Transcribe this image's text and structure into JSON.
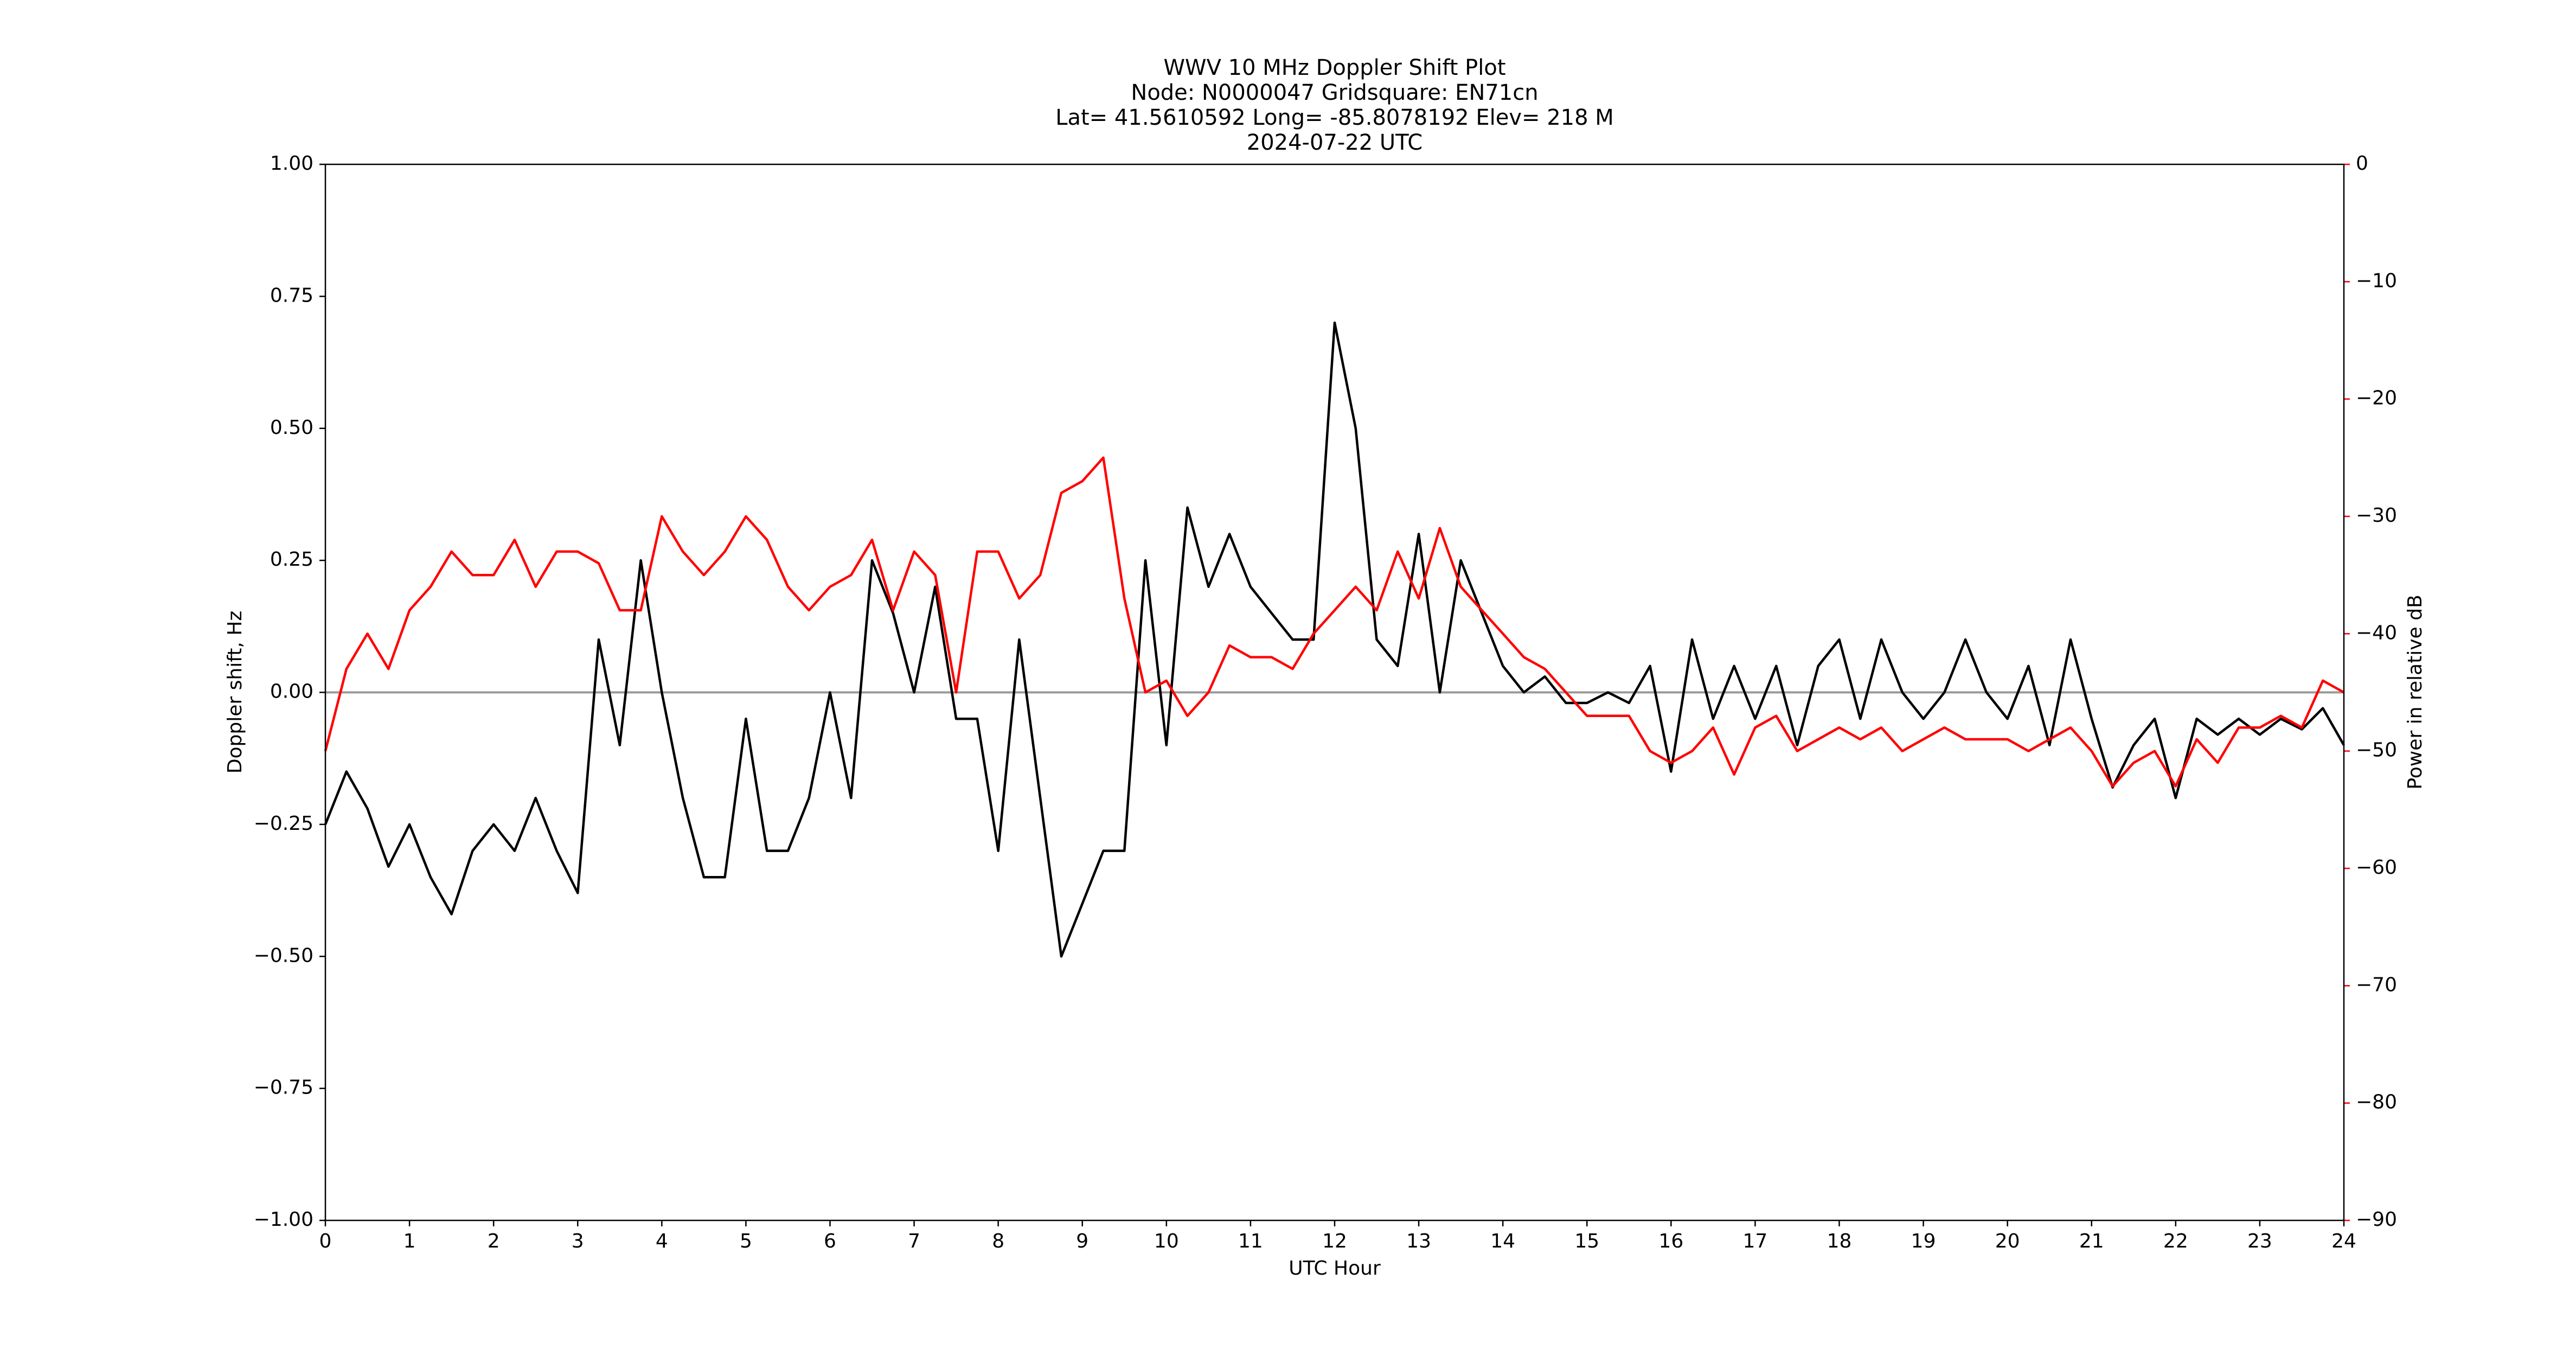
{
  "chart_data": {
    "type": "line",
    "title": [
      "WWV 10 MHz Doppler Shift Plot",
      "Node:  N0000047     Gridsquare:  EN71cn",
      "Lat= 41.5610592    Long= -85.8078192    Elev= 218 M",
      "2024-07-22  UTC"
    ],
    "xlabel": "UTC Hour",
    "ylabel": "Doppler shift, Hz",
    "y2label": "Power in relative dB",
    "xlim": [
      0,
      24
    ],
    "xticks": [
      0,
      1,
      2,
      3,
      4,
      5,
      6,
      7,
      8,
      9,
      10,
      11,
      12,
      13,
      14,
      15,
      16,
      17,
      18,
      19,
      20,
      21,
      22,
      23,
      24
    ],
    "ylim": [
      -1,
      1
    ],
    "yticks": [
      {
        "value": -1,
        "label": "−1.00"
      },
      {
        "value": -0.75,
        "label": "−0.75"
      },
      {
        "value": -0.5,
        "label": "−0.50"
      },
      {
        "value": -0.25,
        "label": "−0.25"
      },
      {
        "value": 0,
        "label": "0.00"
      },
      {
        "value": 0.25,
        "label": "0.25"
      },
      {
        "value": 0.5,
        "label": "0.50"
      },
      {
        "value": 0.75,
        "label": "0.75"
      },
      {
        "value": 1,
        "label": "1.00"
      }
    ],
    "y2lim": [
      -90,
      0
    ],
    "y2ticks": [
      {
        "value": -90,
        "label": "−90"
      },
      {
        "value": -80,
        "label": "−80"
      },
      {
        "value": -70,
        "label": "−70"
      },
      {
        "value": -60,
        "label": "−60"
      },
      {
        "value": -50,
        "label": "−50"
      },
      {
        "value": -40,
        "label": "−40"
      },
      {
        "value": -30,
        "label": "−30"
      },
      {
        "value": -20,
        "label": "−20"
      },
      {
        "value": -10,
        "label": "−10"
      },
      0
    ],
    "y2color": "#ff0000",
    "hline": 0,
    "hline_color": "#999999",
    "x": [
      0,
      0.25,
      0.5,
      0.75,
      1,
      1.25,
      1.5,
      1.75,
      2,
      2.25,
      2.5,
      2.75,
      3,
      3.25,
      3.5,
      3.75,
      4,
      4.25,
      4.5,
      4.75,
      5,
      5.25,
      5.5,
      5.75,
      6,
      6.25,
      6.5,
      6.75,
      7,
      7.25,
      7.5,
      7.75,
      8,
      8.25,
      8.5,
      8.75,
      9,
      9.25,
      9.5,
      9.75,
      10,
      10.25,
      10.5,
      10.75,
      11,
      11.25,
      11.5,
      11.75,
      12,
      12.25,
      12.5,
      12.75,
      13,
      13.25,
      13.5,
      13.75,
      14,
      14.25,
      14.5,
      14.75,
      15,
      15.25,
      15.5,
      15.75,
      16,
      16.25,
      16.5,
      16.75,
      17,
      17.25,
      17.5,
      17.75,
      18,
      18.25,
      18.5,
      18.75,
      19,
      19.25,
      19.5,
      19.75,
      20,
      20.25,
      20.5,
      20.75,
      21,
      21.25,
      21.5,
      21.75,
      22,
      22.25,
      22.5,
      22.75,
      23,
      23.25,
      23.5,
      23.75,
      24
    ],
    "series": [
      {
        "color": "#000000",
        "axis": "y",
        "values": [
          -0.25,
          -0.15,
          -0.22,
          -0.33,
          -0.25,
          -0.35,
          -0.42,
          -0.3,
          -0.25,
          -0.3,
          -0.2,
          -0.3,
          -0.38,
          0.1,
          -0.1,
          0.25,
          0,
          -0.2,
          -0.35,
          -0.35,
          -0.05,
          -0.3,
          -0.3,
          -0.2,
          0,
          -0.2,
          0.25,
          0.15,
          0,
          0.2,
          -0.05,
          -0.05,
          -0.3,
          0.1,
          -0.2,
          -0.5,
          -0.4,
          -0.3,
          -0.3,
          0.25,
          -0.1,
          0.35,
          0.2,
          0.3,
          0.2,
          0.15,
          0.1,
          0.1,
          0.7,
          0.5,
          0.1,
          0.05,
          0.3,
          0,
          0.25,
          0.15,
          0.05,
          0,
          0.03,
          -0.02,
          -0.02,
          0,
          -0.02,
          0.05,
          -0.15,
          0.1,
          -0.05,
          0.05,
          -0.05,
          0.05,
          -0.1,
          0.05,
          0.1,
          -0.05,
          0.1,
          0,
          -0.05,
          0,
          0.1,
          0,
          -0.05,
          0.05,
          -0.1,
          0.1,
          -0.05,
          -0.18,
          -0.1,
          -0.05,
          -0.2,
          -0.05,
          -0.08,
          -0.05,
          -0.08,
          -0.05,
          -0.07,
          -0.03,
          -0.1
        ]
      },
      {
        "color": "#ff0000",
        "axis": "y2",
        "values": [
          -50,
          -43,
          -40,
          -43,
          -38,
          -36,
          -33,
          -35,
          -35,
          -32,
          -36,
          -33,
          -33,
          -34,
          -38,
          -38,
          -30,
          -33,
          -35,
          -33,
          -30,
          -32,
          -36,
          -38,
          -36,
          -35,
          -32,
          -38,
          -33,
          -35,
          -45,
          -33,
          -33,
          -37,
          -35,
          -28,
          -27,
          -25,
          -37,
          -45,
          -44,
          -47,
          -45,
          -41,
          -42,
          -42,
          -43,
          -40,
          -38,
          -36,
          -38,
          -33,
          -37,
          -31,
          -36,
          -38,
          -40,
          -42,
          -43,
          -45,
          -47,
          -47,
          -47,
          -50,
          -51,
          -50,
          -48,
          -52,
          -48,
          -47,
          -50,
          -49,
          -48,
          -49,
          -48,
          -50,
          -49,
          -48,
          -49,
          -49,
          -49,
          -50,
          -49,
          -48,
          -50,
          -53,
          -51,
          -50,
          -53,
          -49,
          -51,
          -48,
          -48,
          -47,
          -48,
          -44,
          -45
        ]
      }
    ]
  }
}
